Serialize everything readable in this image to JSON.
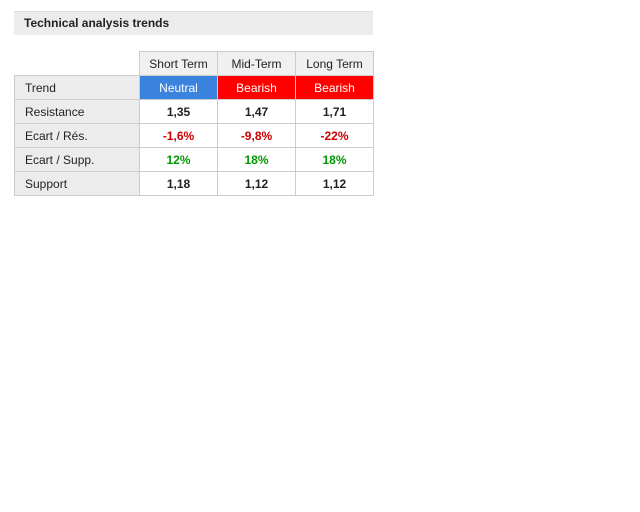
{
  "header": {
    "title": "Technical analysis trends"
  },
  "table": {
    "columns": [
      "Short Term",
      "Mid-Term",
      "Long Term"
    ],
    "rows": [
      [
        "Trend",
        "Neutral",
        "Bearish",
        "Bearish"
      ],
      [
        "Resistance",
        "1,35",
        "1,47",
        "1,71"
      ],
      [
        "Ecart / Rés.",
        "-1,6%",
        "-9,8%",
        "-22%"
      ],
      [
        "Ecart / Supp.",
        "12%",
        "18%",
        "18%"
      ],
      [
        "Support",
        "1,18",
        "1,12",
        "1,12"
      ]
    ]
  }
}
